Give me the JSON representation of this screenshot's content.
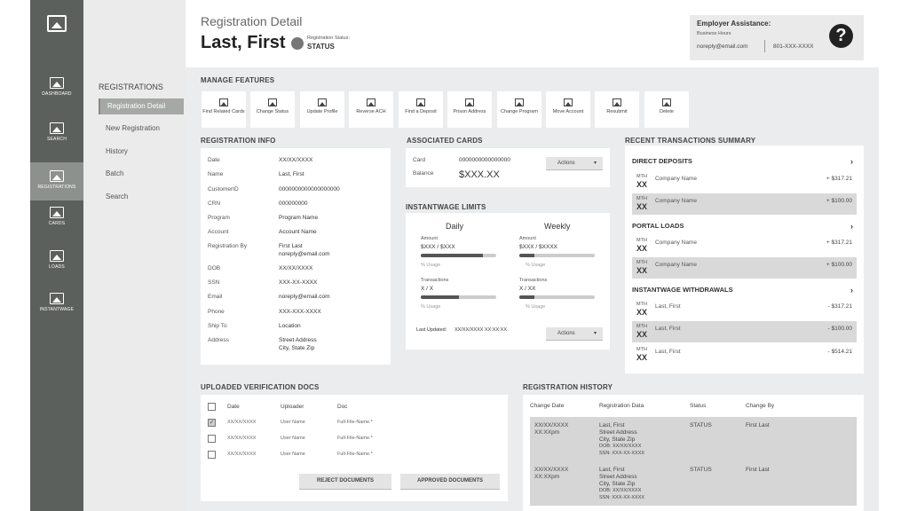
{
  "rail": {
    "items": [
      {
        "label": "DASHBOARD"
      },
      {
        "label": "SEARCH"
      },
      {
        "label": "REGISTRATIONS"
      },
      {
        "label": "CARDS"
      },
      {
        "label": "LOADS"
      },
      {
        "label": "INSTANTWAGE"
      }
    ]
  },
  "subnav": {
    "header": "REGISTRATIONS",
    "items": [
      {
        "label": "Registration Detail"
      },
      {
        "label": "New Registration"
      },
      {
        "label": "History"
      },
      {
        "label": "Batch"
      },
      {
        "label": "Search"
      }
    ]
  },
  "header": {
    "subtitle": "Registration Detail",
    "name": "Last, First",
    "status_label": "Registration Status:",
    "status_value": "STATUS"
  },
  "employer": {
    "title": "Employer Assistance:",
    "hours": "Business Hours",
    "email": "noreply@email.com",
    "phone": "801-XXX-XXXX"
  },
  "features": {
    "title": "MANAGE FEATURES",
    "items": [
      {
        "label": "Find Related Cards"
      },
      {
        "label": "Change Status"
      },
      {
        "label": "Update Profile"
      },
      {
        "label": "Reverse ACH"
      },
      {
        "label": "Find a Deposit"
      },
      {
        "label": "Prison Address"
      },
      {
        "label": "Change Program"
      },
      {
        "label": "Move Account"
      },
      {
        "label": "Resubmit"
      },
      {
        "label": "Delete"
      }
    ]
  },
  "reg_info": {
    "title": "REGISTRATION INFO",
    "rows": [
      {
        "label": "Date",
        "value": "XX/XX/XXXX"
      },
      {
        "label": "Name",
        "value": "Last, First"
      },
      {
        "label": "CustomerID",
        "value": "0000000000000000000"
      },
      {
        "label": "CRN",
        "value": "000000000"
      },
      {
        "label": "Program",
        "value": "Program Name"
      },
      {
        "label": "Account",
        "value": "Account Name"
      },
      {
        "label": "Registration By",
        "value": "First Last",
        "value2": "noreply@email.com"
      },
      {
        "label": "DOB",
        "value": "XX/XX/XXXX"
      },
      {
        "label": "SSN",
        "value": "XXX-XX-XXXX"
      },
      {
        "label": "Email",
        "value": "noreply@email.com"
      },
      {
        "label": "Phone",
        "value": "XXX-XXX-XXXX"
      },
      {
        "label": "Ship To",
        "value": "Location"
      },
      {
        "label": "Address",
        "value": "Street Address",
        "value2": "City, State Zip"
      }
    ]
  },
  "cards": {
    "title": "ASSOCIATED CARDS",
    "card_label": "Card",
    "card_value": "0000000000000000",
    "balance_label": "Balance",
    "balance_value": "$XXX.XX",
    "actions": "Actions"
  },
  "limits": {
    "title": "INSTANTWAGE LIMITS",
    "cols": [
      {
        "title": "Daily",
        "amount_label": "Amount",
        "amount_value": "$XXX / $XXX",
        "amount_usage": 0.82,
        "usage_label": "% Usage",
        "tx_label": "Transactions",
        "tx_value": "X / X",
        "tx_usage": 0.5,
        "tx_usage_label": "% Usage"
      },
      {
        "title": "Weekly",
        "amount_label": "Amount",
        "amount_value": "$XXX / $XXXX",
        "amount_usage": 0.2,
        "usage_label": "% Usage",
        "tx_label": "Transactions",
        "tx_value": "X / XX",
        "tx_usage": 0.2,
        "tx_usage_label": "% Usage"
      }
    ],
    "updated_label": "Last Updated:",
    "updated_value": "XX/XX/XXXX XX:XX:XX",
    "actions": "Actions"
  },
  "transactions": {
    "title": "RECENT TRANSACTIONS SUMMARY",
    "groups": [
      {
        "title": "DIRECT DEPOSITS",
        "rows": [
          {
            "mth": "MTH",
            "xx": "XX",
            "name": "Company Name",
            "amount": "+ $317.21"
          },
          {
            "mth": "MTH",
            "xx": "XX",
            "name": "Company Name",
            "amount": "+ $100.00"
          }
        ]
      },
      {
        "title": "PORTAL LOADS",
        "rows": [
          {
            "mth": "MTH",
            "xx": "XX",
            "name": "Company Name",
            "amount": "+ $317.21"
          },
          {
            "mth": "MTH",
            "xx": "XX",
            "name": "Company Name",
            "amount": "+ $100.00"
          }
        ]
      },
      {
        "title": "INSTANTWAGE WITHDRAWALS",
        "rows": [
          {
            "mth": "MTH",
            "xx": "XX",
            "name": "Last, First",
            "amount": "- $317.21"
          },
          {
            "mth": "MTH",
            "xx": "XX",
            "name": "Last, First",
            "amount": "- $100.00"
          },
          {
            "mth": "MTH",
            "xx": "XX",
            "name": "Last, First",
            "amount": "- $514.21"
          }
        ]
      }
    ]
  },
  "docs": {
    "title": "UPLOADED VERIFICATION DOCS",
    "cols": [
      "Date",
      "Uploader",
      "Doc"
    ],
    "rows": [
      {
        "date": "XX/XX/XXXX",
        "uploader": "User Name",
        "doc": "Full-File-Name.*",
        "checked": true
      },
      {
        "date": "XX/XX/XXXX",
        "uploader": "User Name",
        "doc": "Full-File-Name.*",
        "checked": false
      },
      {
        "date": "XX/XX/XXXX",
        "uploader": "User Name",
        "doc": "Full-File-Name.*",
        "checked": false
      }
    ],
    "reject": "REJECT DOCUMENTS",
    "approve": "APPROVED DOCUMENTS"
  },
  "history": {
    "title": "REGISTRATION HISTORY",
    "cols": [
      "Change Date",
      "Registration Data",
      "Status",
      "Change By"
    ],
    "rows": [
      {
        "date": "XX/XX/XXXX",
        "time": "XX:XXpm",
        "data": [
          "Last, First",
          "Street Address",
          "City, State Zip",
          "DOB: XX/XX/XXXX",
          "SSN: XXX-XX-XXXX"
        ],
        "status": "STATUS",
        "by": "First Last"
      },
      {
        "date": "XX/XX/XXXX",
        "time": "XX:XXpm",
        "data": [
          "Last, First",
          "Street Address",
          "City, State Zip",
          "DOB: XX/XX/XXXX",
          "SSN: XXX-XX-XXXX"
        ],
        "status": "STATUS",
        "by": "First Last"
      }
    ]
  }
}
